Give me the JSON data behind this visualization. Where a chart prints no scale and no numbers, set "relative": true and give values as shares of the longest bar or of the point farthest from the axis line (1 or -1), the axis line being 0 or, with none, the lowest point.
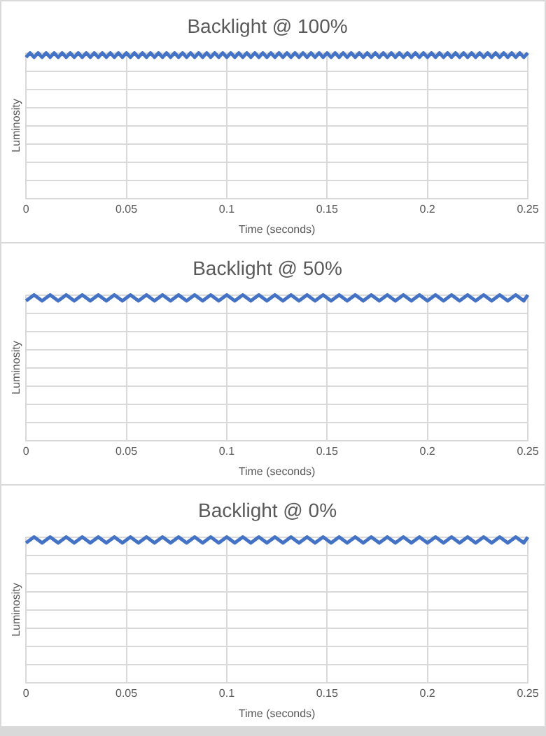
{
  "chart_data": [
    {
      "type": "line",
      "title": "Backlight @ 100%",
      "xlabel": "Time (seconds)",
      "ylabel": "Luminosity",
      "relative": true,
      "grid": true,
      "marker": "none",
      "line_style": "solid",
      "xlim": [
        0,
        0.25
      ],
      "xticks": [
        0,
        0.05,
        0.1,
        0.15,
        0.2,
        0.25
      ],
      "series": [
        {
          "color": "#4472c4",
          "x": [
            0,
            0.002,
            0.004,
            0.006,
            0.008,
            0.01,
            0.012,
            0.014,
            0.016,
            0.018,
            0.02,
            0.022,
            0.024,
            0.026,
            0.028,
            0.03,
            0.032,
            0.034,
            0.036,
            0.038,
            0.04,
            0.042,
            0.044,
            0.046,
            0.048,
            0.05,
            0.052,
            0.054,
            0.056,
            0.058,
            0.06,
            0.062,
            0.064,
            0.066,
            0.068,
            0.07,
            0.072,
            0.074,
            0.076,
            0.078,
            0.08,
            0.082,
            0.084,
            0.086,
            0.088,
            0.09,
            0.092,
            0.094,
            0.096,
            0.098,
            0.1,
            0.102,
            0.104,
            0.106,
            0.108,
            0.11,
            0.112,
            0.114,
            0.116,
            0.118,
            0.12,
            0.122,
            0.124,
            0.126,
            0.128,
            0.13,
            0.132,
            0.134,
            0.136,
            0.138,
            0.14,
            0.142,
            0.144,
            0.146,
            0.148,
            0.15,
            0.152,
            0.154,
            0.156,
            0.158,
            0.16,
            0.162,
            0.164,
            0.166,
            0.168,
            0.17,
            0.172,
            0.174,
            0.176,
            0.178,
            0.18,
            0.182,
            0.184,
            0.186,
            0.188,
            0.19,
            0.192,
            0.194,
            0.196,
            0.198,
            0.2,
            0.202,
            0.204,
            0.206,
            0.208,
            0.21,
            0.212,
            0.214,
            0.216,
            0.218,
            0.22,
            0.222,
            0.224,
            0.226,
            0.228,
            0.23,
            0.232,
            0.234,
            0.236,
            0.238,
            0.24,
            0.242,
            0.244,
            0.246,
            0.248,
            0.25
          ],
          "values": [
            0.97,
            1,
            0.97,
            1,
            0.97,
            1,
            0.97,
            1,
            0.97,
            1,
            0.97,
            1,
            0.97,
            1,
            0.97,
            1,
            0.97,
            1,
            0.97,
            1,
            0.97,
            1,
            0.97,
            1,
            0.97,
            1,
            0.97,
            1,
            0.97,
            1,
            0.97,
            1,
            0.97,
            1,
            0.97,
            1,
            0.97,
            1,
            0.97,
            1,
            0.97,
            1,
            0.97,
            1,
            0.97,
            1,
            0.97,
            1,
            0.97,
            1,
            0.97,
            1,
            0.97,
            1,
            0.97,
            1,
            0.97,
            1,
            0.97,
            1,
            0.97,
            1,
            0.97,
            1,
            0.97,
            1,
            0.97,
            1,
            0.97,
            1,
            0.97,
            1,
            0.97,
            1,
            0.97,
            1,
            0.97,
            1,
            0.97,
            1,
            0.97,
            1,
            0.97,
            1,
            0.97,
            1,
            0.97,
            1,
            0.97,
            1,
            0.97,
            1,
            0.97,
            1,
            0.97,
            1,
            0.97,
            1,
            0.97,
            1,
            0.97,
            1,
            0.97,
            1,
            0.97,
            1,
            0.97,
            1,
            0.97,
            1,
            0.97,
            1,
            0.97,
            1,
            0.97,
            1,
            0.97,
            1,
            0.97,
            1,
            0.97,
            1,
            0.97,
            1,
            0.97,
            1
          ]
        }
      ]
    },
    {
      "type": "line",
      "title": "Backlight @ 50%",
      "xlabel": "Time (seconds)",
      "ylabel": "Luminosity",
      "relative": true,
      "grid": true,
      "marker": "none",
      "line_style": "solid",
      "xlim": [
        0,
        0.25
      ],
      "xticks": [
        0,
        0.05,
        0.1,
        0.15,
        0.2,
        0.25
      ],
      "series": [
        {
          "color": "#4472c4",
          "x": [
            0,
            0.004,
            0.008,
            0.012,
            0.016,
            0.02,
            0.024,
            0.028,
            0.032,
            0.036,
            0.04,
            0.044,
            0.048,
            0.052,
            0.056,
            0.06,
            0.064,
            0.068,
            0.072,
            0.076,
            0.08,
            0.084,
            0.088,
            0.092,
            0.096,
            0.1,
            0.104,
            0.108,
            0.112,
            0.116,
            0.12,
            0.124,
            0.128,
            0.132,
            0.136,
            0.14,
            0.144,
            0.148,
            0.152,
            0.156,
            0.16,
            0.164,
            0.168,
            0.172,
            0.176,
            0.18,
            0.184,
            0.188,
            0.192,
            0.196,
            0.2,
            0.204,
            0.208,
            0.212,
            0.216,
            0.22,
            0.224,
            0.228,
            0.232,
            0.236,
            0.24,
            0.244,
            0.248,
            0.25
          ],
          "values": [
            0.96,
            1,
            0.96,
            1,
            0.96,
            1,
            0.96,
            1,
            0.96,
            1,
            0.96,
            1,
            0.96,
            1,
            0.96,
            1,
            0.96,
            1,
            0.96,
            1,
            0.96,
            1,
            0.96,
            1,
            0.96,
            1,
            0.96,
            1,
            0.96,
            1,
            0.96,
            1,
            0.96,
            1,
            0.96,
            1,
            0.96,
            1,
            0.96,
            1,
            0.96,
            1,
            0.96,
            1,
            0.96,
            1,
            0.96,
            1,
            0.96,
            1,
            0.96,
            1,
            0.96,
            1,
            0.96,
            1,
            0.96,
            1,
            0.96,
            1,
            0.96,
            1,
            0.96,
            1
          ]
        }
      ]
    },
    {
      "type": "line",
      "title": "Backlight @ 0%",
      "xlabel": "Time (seconds)",
      "ylabel": "Luminosity",
      "relative": true,
      "grid": true,
      "marker": "none",
      "line_style": "solid",
      "xlim": [
        0,
        0.25
      ],
      "xticks": [
        0,
        0.05,
        0.1,
        0.15,
        0.2,
        0.25
      ],
      "series": [
        {
          "color": "#4472c4",
          "x": [
            0,
            0.004,
            0.008,
            0.012,
            0.016,
            0.02,
            0.024,
            0.028,
            0.032,
            0.036,
            0.04,
            0.044,
            0.048,
            0.052,
            0.056,
            0.06,
            0.064,
            0.068,
            0.072,
            0.076,
            0.08,
            0.084,
            0.088,
            0.092,
            0.096,
            0.1,
            0.104,
            0.108,
            0.112,
            0.116,
            0.12,
            0.124,
            0.128,
            0.132,
            0.136,
            0.14,
            0.144,
            0.148,
            0.152,
            0.156,
            0.16,
            0.164,
            0.168,
            0.172,
            0.176,
            0.18,
            0.184,
            0.188,
            0.192,
            0.196,
            0.2,
            0.204,
            0.208,
            0.212,
            0.216,
            0.22,
            0.224,
            0.228,
            0.232,
            0.236,
            0.24,
            0.244,
            0.248,
            0.25
          ],
          "values": [
            0.96,
            1,
            0.96,
            1,
            0.96,
            1,
            0.96,
            1,
            0.96,
            1,
            0.96,
            1,
            0.96,
            1,
            0.96,
            1,
            0.96,
            1,
            0.96,
            1,
            0.96,
            1,
            0.96,
            1,
            0.96,
            1,
            0.96,
            1,
            0.96,
            1,
            0.96,
            1,
            0.96,
            1,
            0.96,
            1,
            0.96,
            1,
            0.96,
            1,
            0.96,
            1,
            0.96,
            1,
            0.96,
            1,
            0.96,
            1,
            0.96,
            1,
            0.96,
            1,
            0.96,
            1,
            0.96,
            1,
            0.96,
            1,
            0.96,
            1,
            0.96,
            1,
            0.96,
            1
          ]
        }
      ]
    }
  ]
}
